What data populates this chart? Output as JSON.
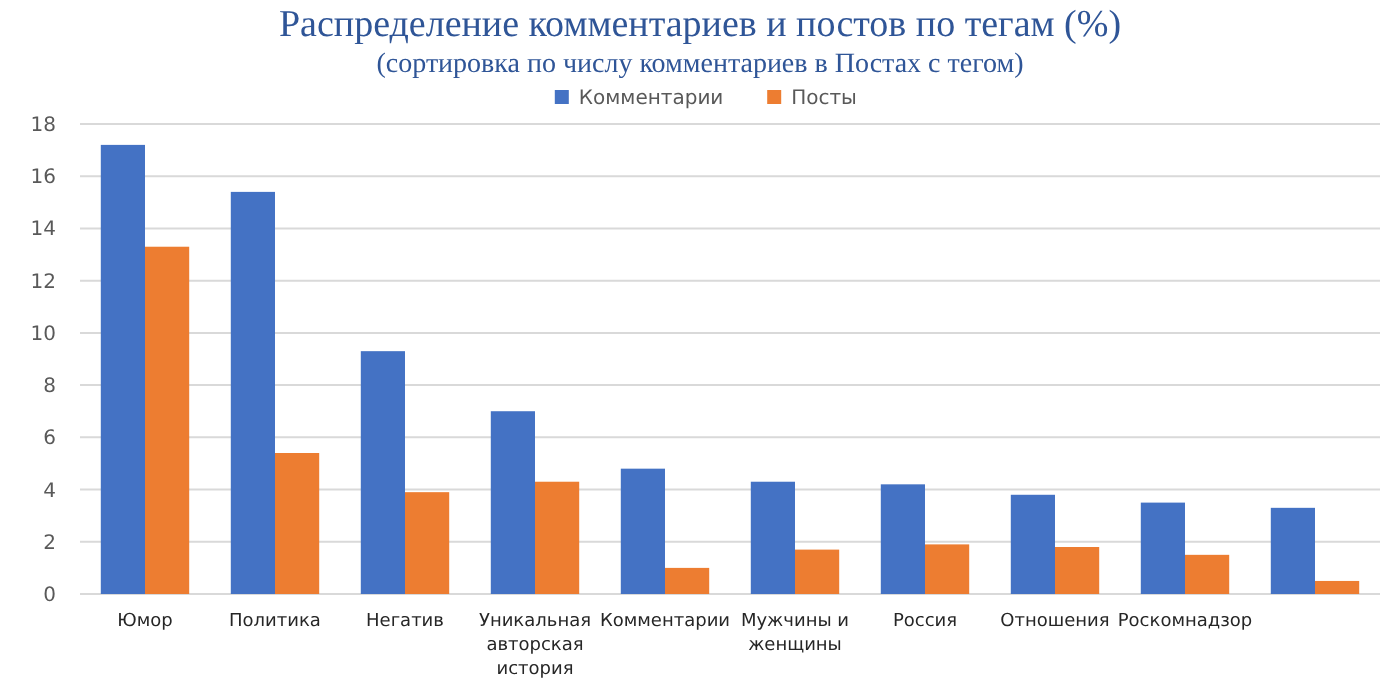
{
  "chart_data": {
    "type": "bar",
    "title": "Распределение комментариев и постов по тегам (%)",
    "subtitle": "(сортировка по числу комментариев в Постах с тегом)",
    "categories": [
      "Юмор",
      "Политика",
      "Негатив",
      "Уникальная авторская история",
      "Комментарии",
      "Мужчины и женщины",
      "Россия",
      "Отношения",
      "Роскомнадзор",
      null
    ],
    "series": [
      {
        "name": "Комментарии",
        "color": "#4472c4",
        "values": [
          17.2,
          15.4,
          9.3,
          7.0,
          4.8,
          4.3,
          4.2,
          3.8,
          3.5,
          3.3
        ]
      },
      {
        "name": "Посты",
        "color": "#ed7d31",
        "values": [
          13.3,
          5.4,
          3.9,
          4.3,
          1.0,
          1.7,
          1.9,
          1.8,
          1.5,
          0.5
        ]
      }
    ],
    "ylim": [
      0,
      18
    ],
    "yticks": [
      0,
      2,
      4,
      6,
      8,
      10,
      12,
      14,
      16,
      18
    ],
    "grid": "y",
    "legend": "top"
  }
}
